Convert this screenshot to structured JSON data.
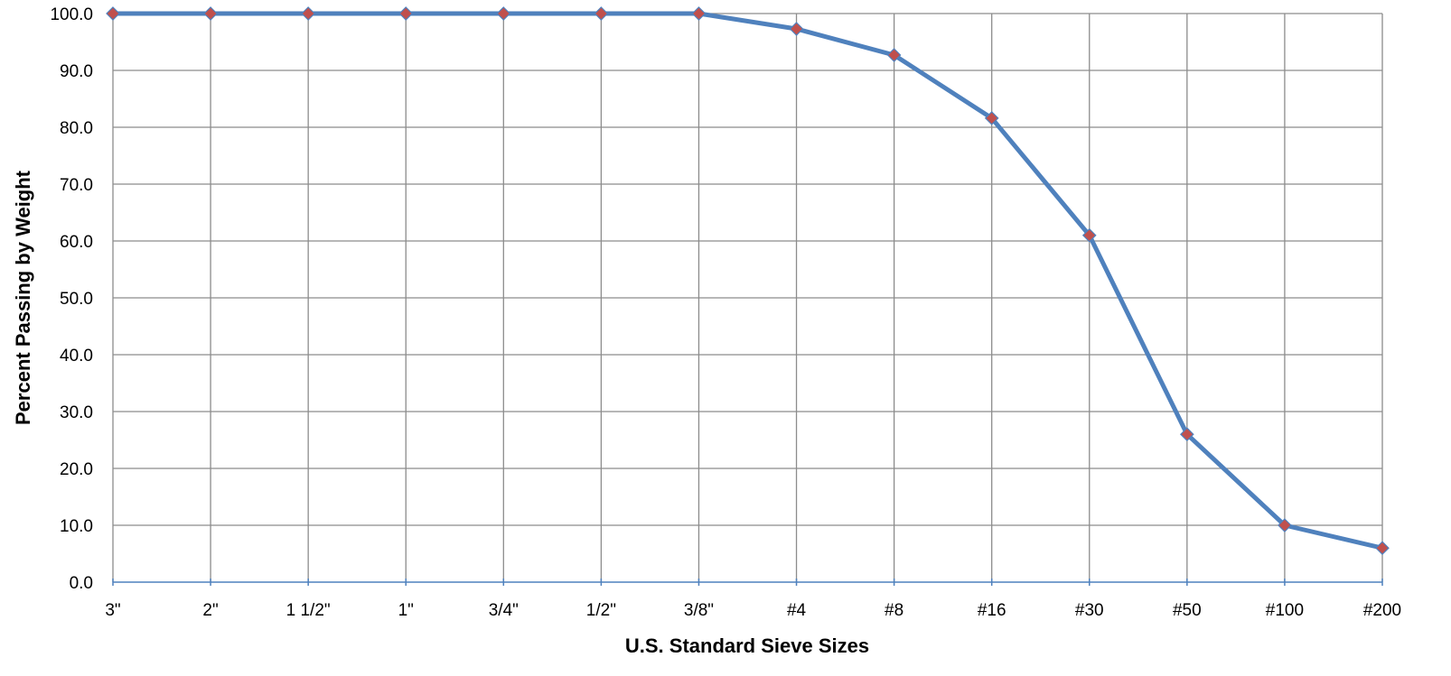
{
  "chart_data": {
    "type": "line",
    "title": "",
    "xlabel": "U.S.  Standard Sieve Sizes",
    "ylabel": "Percent Passing by Weight",
    "categories": [
      "3\"",
      "2\"",
      "1 1/2\"",
      "1\"",
      "3/4\"",
      "1/2\"",
      "3/8\"",
      "#4",
      "#8",
      "#16",
      "#30",
      "#50",
      "#100",
      "#200"
    ],
    "series": [
      {
        "values": [
          100.0,
          100.0,
          100.0,
          100.0,
          100.0,
          100.0,
          100.0,
          97.3,
          92.7,
          81.6,
          61.0,
          26.0,
          10.0,
          6.0
        ]
      }
    ],
    "ylim": [
      0,
      100
    ],
    "yticks": [
      "0.0",
      "10.0",
      "20.0",
      "30.0",
      "40.0",
      "50.0",
      "60.0",
      "70.0",
      "80.0",
      "90.0",
      "100.0"
    ],
    "grid": true,
    "legend": "none",
    "colors": {
      "line": "#4F81BD",
      "marker": "#C0504D",
      "grid": "#8C8C8C",
      "axis": "#4F81BD"
    }
  }
}
